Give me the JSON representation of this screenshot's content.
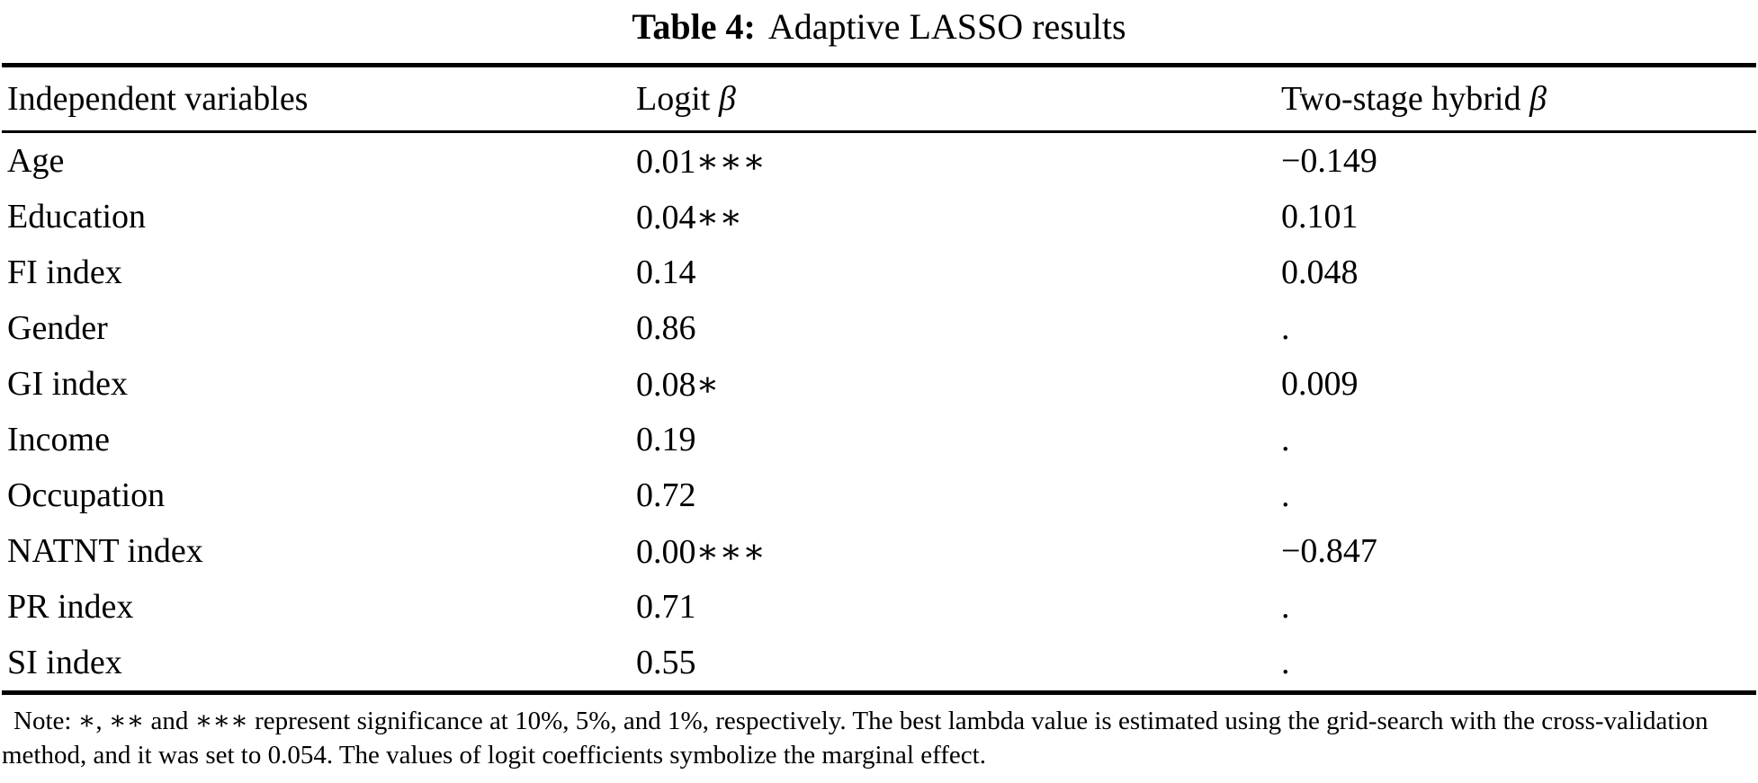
{
  "caption": {
    "label": "Table 4:",
    "title": "Adaptive LASSO results"
  },
  "table": {
    "columns": [
      {
        "label": "Independent variables",
        "symbol": ""
      },
      {
        "label": "Logit",
        "symbol": "β"
      },
      {
        "label": "Two-stage hybrid",
        "symbol": "β"
      }
    ],
    "rows": [
      {
        "variable": "Age",
        "logit_beta": "0.01∗∗∗",
        "two_stage_hybrid_beta": "−0.149"
      },
      {
        "variable": "Education",
        "logit_beta": "0.04∗∗",
        "two_stage_hybrid_beta": "0.101"
      },
      {
        "variable": "FI index",
        "logit_beta": "0.14",
        "two_stage_hybrid_beta": "0.048"
      },
      {
        "variable": "Gender",
        "logit_beta": "0.86",
        "two_stage_hybrid_beta": "."
      },
      {
        "variable": "GI index",
        "logit_beta": "0.08∗",
        "two_stage_hybrid_beta": "0.009"
      },
      {
        "variable": "Income",
        "logit_beta": "0.19",
        "two_stage_hybrid_beta": "."
      },
      {
        "variable": "Occupation",
        "logit_beta": "0.72",
        "two_stage_hybrid_beta": "."
      },
      {
        "variable": "NATNT index",
        "logit_beta": "0.00∗∗∗",
        "two_stage_hybrid_beta": "−0.847"
      },
      {
        "variable": "PR index",
        "logit_beta": "0.71",
        "two_stage_hybrid_beta": "."
      },
      {
        "variable": "SI index",
        "logit_beta": "0.55",
        "two_stage_hybrid_beta": "."
      }
    ]
  },
  "note": "Note: ∗, ∗∗ and ∗∗∗ represent significance at 10%, 5%, and 1%, respectively. The best lambda value is estimated using the grid-search with the cross-validation method, and it was set to 0.054. The values of logit coefficients symbolize the marginal effect.",
  "colors": {
    "text": "#000000",
    "background": "#ffffff",
    "rule": "#000000"
  }
}
